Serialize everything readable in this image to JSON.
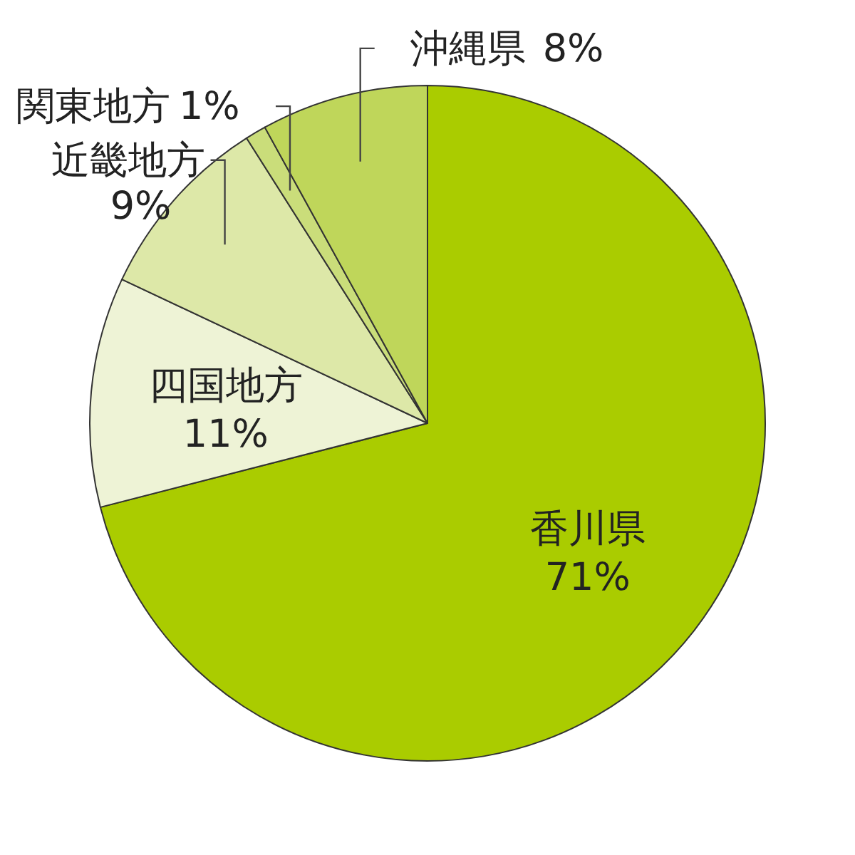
{
  "chart_data": {
    "type": "pie",
    "categories": [
      "香川県",
      "四国地方",
      "近畿地方",
      "関東地方",
      "沖縄県"
    ],
    "values": [
      71,
      11,
      9,
      1,
      8
    ],
    "colors": [
      "#aacc00",
      "#eef3d6",
      "#dde8a8",
      "#cadd7a",
      "#bfd65a"
    ],
    "value_labels": [
      "71%",
      "11%",
      "9%",
      "1%",
      "8%"
    ]
  }
}
